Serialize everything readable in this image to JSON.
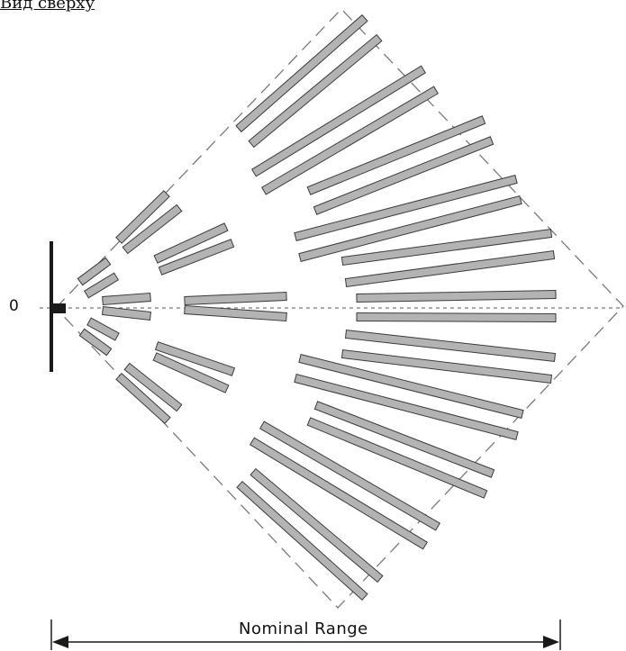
{
  "header": {
    "title": "Вид сверху"
  },
  "diagram": {
    "origin_label": "0",
    "range_label": "Nominal Range",
    "colors": {
      "zone_fill": "#b3b3b3",
      "zone_stroke": "#3c3c3c",
      "line": "#222222",
      "dash": "#7a7a7a"
    }
  }
}
